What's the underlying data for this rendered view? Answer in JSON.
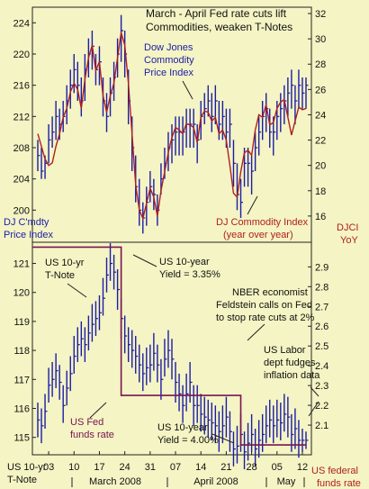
{
  "colors": {
    "background": "#f4f4c4",
    "price_bars": "#1c1ca8",
    "index_line": "#b02020",
    "fed_line": "#7a1450",
    "annotation_blue": "#1c1ca8",
    "annotation_red": "#b02020",
    "annotation_purple": "#7a1450",
    "text": "#111111"
  },
  "chart_data": [
    {
      "type": "line",
      "title": "March - April Fed rate cuts lift Commodities, weaken T-Notes",
      "ylabel_left": "DJ C'mdty Price Index",
      "ylabel_right": "DJCI YoY",
      "left_ticks": [
        "224",
        "220",
        "216",
        "212",
        "208",
        "204",
        "200"
      ],
      "right_ticks": [
        "32",
        "30",
        "28",
        "26",
        "24",
        "22",
        "20",
        "18",
        "16"
      ],
      "ylim_left": [
        196,
        226
      ],
      "ylim_right": [
        14,
        32.5
      ],
      "x": [
        0,
        1,
        2,
        3,
        4,
        5,
        6,
        7,
        8,
        9,
        10,
        11,
        12,
        13,
        14,
        15,
        16,
        17,
        18,
        19,
        20,
        21,
        22,
        23,
        24,
        25,
        26,
        27,
        28,
        29,
        30,
        31,
        32,
        33,
        34,
        35,
        36,
        37,
        38,
        39,
        40,
        41,
        42,
        43,
        44,
        45,
        46,
        47,
        48,
        49,
        50,
        51,
        52,
        53,
        54,
        55,
        56,
        57,
        58,
        59,
        60,
        61,
        62,
        63,
        64,
        65,
        66,
        67,
        68,
        69,
        70,
        71,
        72,
        73,
        74
      ],
      "series": [
        {
          "name": "Dow Jones Commodity Price Index",
          "style": "ohlc",
          "high": [
            209,
            208,
            207,
            211,
            212,
            214,
            213,
            214,
            216,
            218,
            220,
            219,
            217,
            220,
            222,
            223,
            220,
            221,
            217,
            215,
            217,
            219,
            222,
            225,
            223,
            218,
            212,
            207,
            204,
            201,
            203,
            205,
            204,
            202,
            206,
            208,
            210,
            211,
            212,
            212,
            212,
            213,
            213,
            213,
            211,
            214,
            215,
            216,
            215,
            216,
            214,
            214,
            213,
            213,
            209,
            206,
            204,
            208,
            208,
            207,
            210,
            212,
            214,
            215,
            213,
            212,
            214,
            215,
            216,
            217,
            218,
            216,
            218,
            217,
            217
          ],
          "low": [
            205,
            204,
            204,
            206,
            208,
            209,
            209,
            210,
            211,
            213,
            215,
            214,
            212,
            214,
            217,
            218,
            216,
            216,
            212,
            210,
            212,
            214,
            217,
            219,
            217,
            211,
            205,
            201,
            198,
            197,
            198,
            201,
            200,
            198,
            202,
            204,
            205,
            206,
            207,
            207,
            207,
            208,
            208,
            208,
            206,
            209,
            211,
            212,
            210,
            211,
            209,
            209,
            208,
            208,
            203,
            200,
            199,
            203,
            203,
            202,
            205,
            207,
            209,
            210,
            208,
            207,
            209,
            210,
            211,
            212,
            213,
            211,
            213,
            213,
            213
          ],
          "close": [
            207,
            205,
            206,
            209,
            210,
            212,
            211,
            212,
            214,
            216,
            218,
            216,
            214,
            218,
            220,
            221,
            218,
            219,
            214,
            212,
            215,
            217,
            220,
            223,
            220,
            214,
            208,
            203,
            200,
            199,
            201,
            203,
            202,
            200,
            204,
            206,
            208,
            209,
            210,
            210,
            210,
            211,
            211,
            211,
            209,
            212,
            213,
            214,
            212,
            214,
            211,
            212,
            210,
            211,
            206,
            202,
            201,
            206,
            206,
            205,
            208,
            210,
            212,
            213,
            210,
            210,
            212,
            213,
            214,
            215,
            216,
            214,
            216,
            215,
            216
          ]
        },
        {
          "name": "DJ Commodity Index (year over year)",
          "axis": "right",
          "style": "line",
          "values": [
            22.5,
            21.5,
            20.5,
            20.0,
            20.2,
            21.5,
            22.5,
            23.8,
            24.5,
            25.8,
            26.5,
            26.0,
            24.5,
            26.8,
            28.5,
            29.5,
            27.5,
            28.2,
            25.5,
            24.2,
            25.5,
            26.5,
            28.5,
            30.5,
            29.5,
            26.5,
            22.5,
            18.5,
            16.5,
            15.8,
            17.0,
            18.2,
            17.5,
            16.0,
            18.0,
            19.5,
            21.0,
            22.2,
            23.0,
            22.8,
            22.5,
            23.3,
            23.2,
            23.0,
            21.8,
            23.8,
            24.3,
            24.2,
            23.5,
            23.8,
            22.5,
            22.8,
            22.0,
            20.0,
            17.8,
            17.5,
            19.5,
            21.0,
            21.2,
            20.8,
            22.8,
            24.0,
            23.8,
            24.8,
            23.2,
            23.4,
            24.5,
            25.0,
            25.2,
            23.8,
            22.4,
            23.5,
            24.6,
            24.4,
            24.5
          ]
        }
      ],
      "annotations": [
        {
          "text": "Dow Jones Commodity Price Index",
          "lines": [
            "Dow Jones",
            "Commodity",
            "Price Index"
          ]
        },
        {
          "text": "DJ Commodity Index (year over year)",
          "lines": [
            "DJ Commodity Index",
            "(year over year)"
          ]
        }
      ]
    },
    {
      "type": "line",
      "ylabel_left": "US 10-yr T-Note",
      "ylabel_right": "US federal funds rate",
      "left_ticks": [
        "121",
        "120",
        "119",
        "118",
        "117",
        "116",
        "115"
      ],
      "right_ticks": [
        "2.9",
        "2.8",
        "2.7",
        "2.6",
        "2.5",
        "2.4",
        "2.3",
        "2.2",
        "2.1"
      ],
      "ylim_left": [
        114.4,
        121.7
      ],
      "ylim_right": [
        1.95,
        3.02
      ],
      "x_tick_labels": [
        "03",
        "10",
        "17",
        "24",
        "31",
        "07",
        "14",
        "21",
        "28",
        "05",
        "12"
      ],
      "x_month_labels": [
        "March 2008",
        "April 2008",
        "May"
      ],
      "x": [
        0,
        1,
        2,
        3,
        4,
        5,
        6,
        7,
        8,
        9,
        10,
        11,
        12,
        13,
        14,
        15,
        16,
        17,
        18,
        19,
        20,
        21,
        22,
        23,
        24,
        25,
        26,
        27,
        28,
        29,
        30,
        31,
        32,
        33,
        34,
        35,
        36,
        37,
        38,
        39,
        40,
        41,
        42,
        43,
        44,
        45,
        46,
        47,
        48,
        49,
        50,
        51,
        52,
        53,
        54,
        55,
        56,
        57,
        58,
        59,
        60,
        61,
        62,
        63,
        64,
        65,
        66,
        67,
        68,
        69,
        70,
        71,
        72,
        73,
        74
      ],
      "series": [
        {
          "name": "US 10-yr T-Note",
          "style": "ohlc",
          "high": [
            116.2,
            116.0,
            116.5,
            117.4,
            117.6,
            117.9,
            117.5,
            116.8,
            117.3,
            117.8,
            118.5,
            118.8,
            119.0,
            118.8,
            119.2,
            119.6,
            119.7,
            119.9,
            120.5,
            121.2,
            121.7,
            121.3,
            120.8,
            119.8,
            119.2,
            118.8,
            118.7,
            118.5,
            118.2,
            117.9,
            118.1,
            118.2,
            118.6,
            118.2,
            117.7,
            118.4,
            118.7,
            118.4,
            117.6,
            117.2,
            116.8,
            117.2,
            117.6,
            116.8,
            116.8,
            116.5,
            116.4,
            116.3,
            116.2,
            116.1,
            115.9,
            116.1,
            116.4,
            115.9,
            115.2,
            115.4,
            115.8,
            115.2,
            115.5,
            115.8,
            115.3,
            115.6,
            115.8,
            116.1,
            116.3,
            116.1,
            116.3,
            116.2,
            116.5,
            116.4,
            115.8,
            116.0,
            115.6,
            115.3,
            115.2
          ],
          "low": [
            115.0,
            114.8,
            115.3,
            116.2,
            116.4,
            116.7,
            116.3,
            115.5,
            116.1,
            116.6,
            117.2,
            117.6,
            117.8,
            117.6,
            118.0,
            118.3,
            118.5,
            118.7,
            119.2,
            120.0,
            120.4,
            120.1,
            119.4,
            118.4,
            117.9,
            117.6,
            117.4,
            117.2,
            116.9,
            116.6,
            116.8,
            116.9,
            117.3,
            116.9,
            116.3,
            117.1,
            117.4,
            117.0,
            116.2,
            115.9,
            115.5,
            115.9,
            116.2,
            115.4,
            115.5,
            115.2,
            115.1,
            115.0,
            114.9,
            114.8,
            114.5,
            114.8,
            115.0,
            114.5,
            114.0,
            114.1,
            114.5,
            113.9,
            114.2,
            114.5,
            114.0,
            114.3,
            114.5,
            114.8,
            115.0,
            114.8,
            115.0,
            114.9,
            115.2,
            115.0,
            114.5,
            114.6,
            114.3,
            114.5,
            114.6
          ],
          "close": [
            115.6,
            115.4,
            115.9,
            116.8,
            117.0,
            117.3,
            116.9,
            116.1,
            116.7,
            117.2,
            117.8,
            118.2,
            118.4,
            118.2,
            118.6,
            118.9,
            119.1,
            119.3,
            119.8,
            120.6,
            121.0,
            120.7,
            120.1,
            119.1,
            118.5,
            118.2,
            118.0,
            117.8,
            117.5,
            117.2,
            117.4,
            117.5,
            117.9,
            117.5,
            117.0,
            117.7,
            118.0,
            117.7,
            116.9,
            116.5,
            116.1,
            116.5,
            116.9,
            116.1,
            116.1,
            115.8,
            115.7,
            115.6,
            115.5,
            115.4,
            115.2,
            115.4,
            115.7,
            115.2,
            114.6,
            114.7,
            115.1,
            114.5,
            114.8,
            115.1,
            114.6,
            114.9,
            115.1,
            115.4,
            115.6,
            115.4,
            115.6,
            115.5,
            115.8,
            115.7,
            115.1,
            115.3,
            114.9,
            114.9,
            114.9
          ]
        },
        {
          "name": "US Fed funds rate",
          "axis": "right",
          "style": "step",
          "x": [
            0,
            20,
            22,
            23,
            55,
            56,
            66,
            67,
            74
          ],
          "values": [
            3.0,
            3.0,
            3.0,
            2.25,
            2.25,
            2.0,
            2.0,
            2.0,
            2.0
          ]
        }
      ],
      "annotations": [
        {
          "text": "US 10-yr T-Note",
          "lines": [
            "US 10-yr",
            "T-Note"
          ]
        },
        {
          "text": "US 10-year Yield = 3.35%",
          "lines": [
            "US 10-year",
            "Yield = 3.35%"
          ]
        },
        {
          "text": "NBER economist Feldstein calls on Fed to stop rate cuts at 2%",
          "lines": [
            "NBER economist",
            "Feldstein calls on Fed",
            "to stop rate cuts at 2%"
          ]
        },
        {
          "text": "US Labor dept fudges inflation data",
          "lines": [
            "US Labor",
            "dept fudges",
            "inflation data"
          ]
        },
        {
          "text": "US Fed funds rate",
          "lines": [
            "US Fed",
            "funds rate"
          ]
        },
        {
          "text": "US 10-year Yield = 4.00%",
          "lines": [
            "US 10-year",
            "Yield = 4.00%"
          ]
        }
      ]
    }
  ]
}
